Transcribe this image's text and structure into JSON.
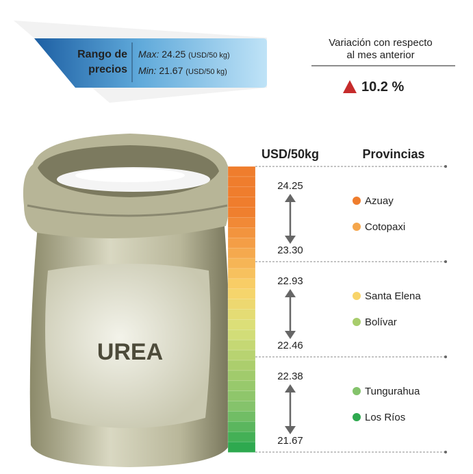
{
  "price_range": {
    "title_lines": [
      "Rango de",
      "precios"
    ],
    "max": {
      "label": "Max:",
      "value": "24.25",
      "unit": "(USD/50 kg)"
    },
    "min": {
      "label": "Min:",
      "value": "21.67",
      "unit": "(USD/50 kg)"
    }
  },
  "variation": {
    "title_lines": [
      "Variación con respecto",
      "al mes anterior"
    ],
    "value": "10.2 %"
  },
  "product": "UREA",
  "table": {
    "headers": [
      "USD/50kg",
      "Provincias"
    ],
    "groups": [
      {
        "high": "24.25",
        "low": "23.30",
        "provinces": [
          {
            "name": "Azuay",
            "color": "#ef7d2d"
          },
          {
            "name": "Cotopaxi",
            "color": "#f5a64c"
          }
        ]
      },
      {
        "high": "22.93",
        "low": "22.46",
        "provinces": [
          {
            "name": "Santa Elena",
            "color": "#f8d46a"
          },
          {
            "name": "Bolívar",
            "color": "#a8cd6c"
          }
        ]
      },
      {
        "high": "22.38",
        "low": "21.67",
        "provinces": [
          {
            "name": "Tungurahua",
            "color": "#84c36b"
          },
          {
            "name": "Los Ríos",
            "color": "#2ea94f"
          }
        ]
      }
    ]
  }
}
